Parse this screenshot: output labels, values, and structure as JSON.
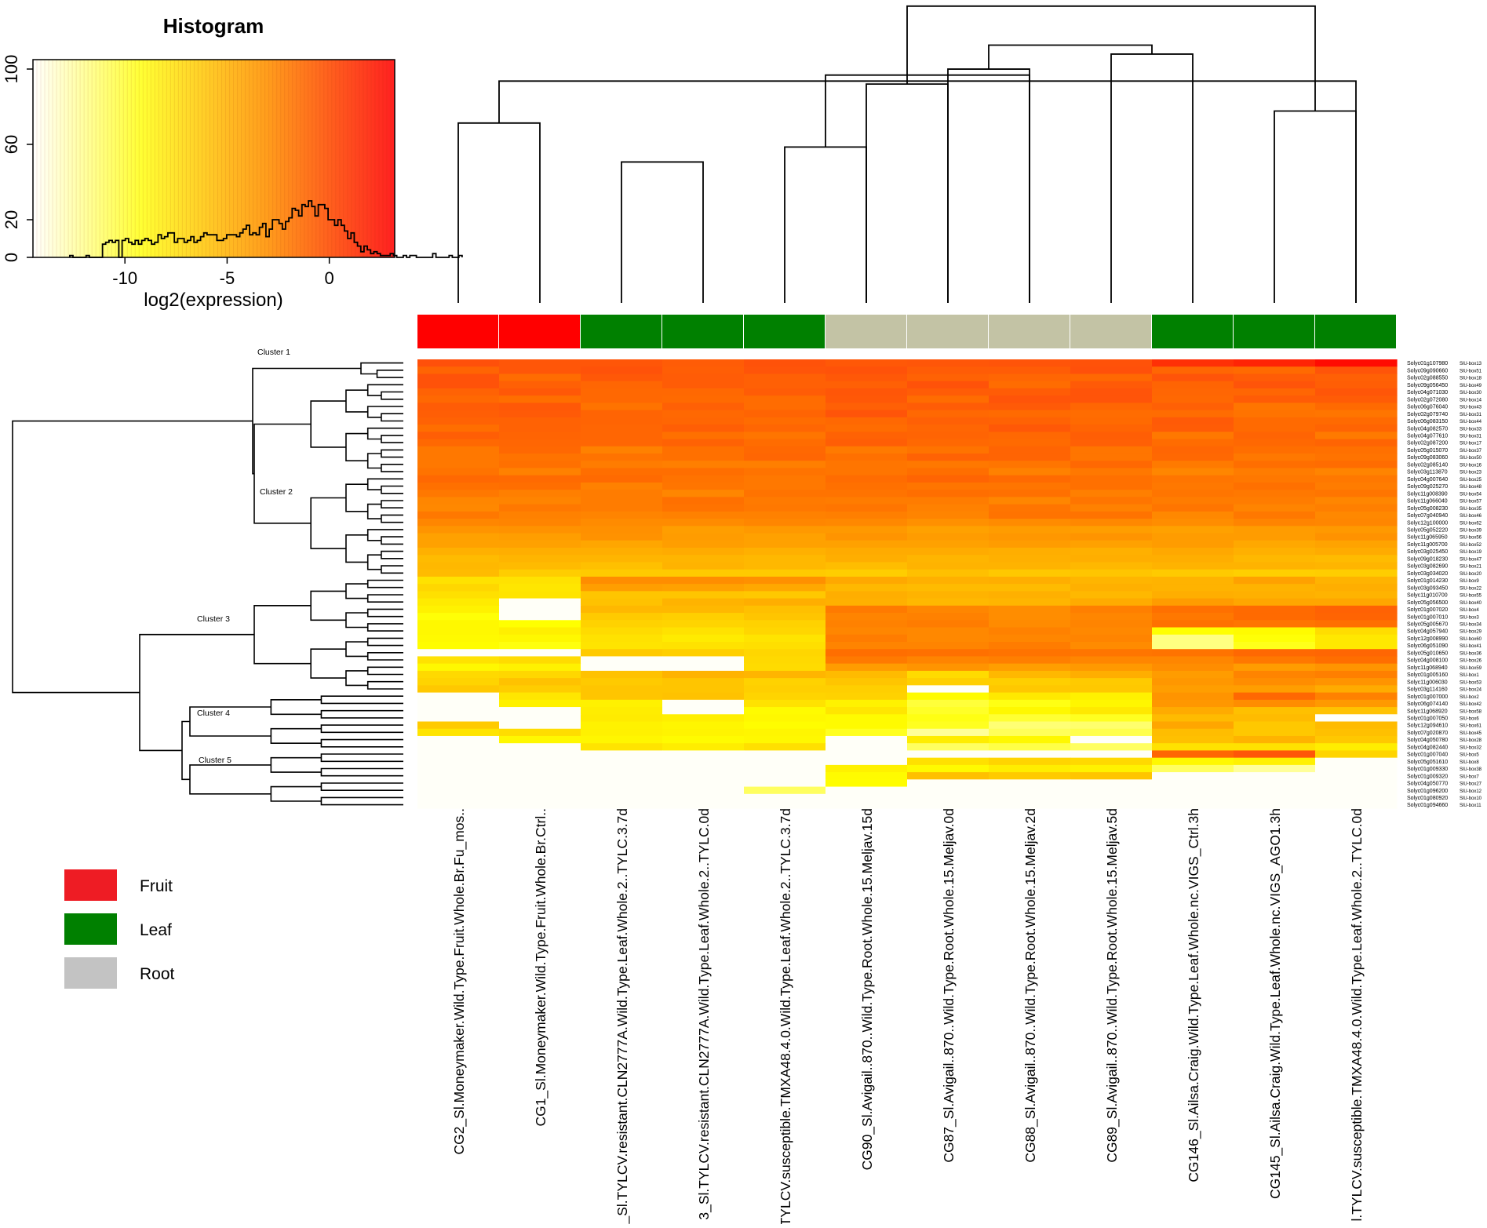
{
  "chart_data": {
    "type": "heatmap",
    "histogram": {
      "title": "Histogram",
      "xlabel": "log2(expression)",
      "x_ticks": [
        "-10",
        "-5",
        "0"
      ],
      "y_ticks": [
        "0",
        "20",
        "60",
        "100"
      ],
      "xlim": [
        -14.5,
        3.2
      ],
      "ylim": [
        0,
        105
      ],
      "bins_start": -12.7,
      "bin_width": 0.16,
      "counts": [
        1,
        0,
        0,
        0,
        0,
        1,
        0,
        0,
        0,
        0,
        7,
        8,
        9,
        8,
        9,
        0,
        9,
        10,
        8,
        7,
        9,
        7,
        9,
        10,
        9,
        7,
        8,
        12,
        10,
        11,
        13,
        13,
        8,
        10,
        10,
        8,
        9,
        11,
        8,
        9,
        11,
        13,
        12,
        12,
        12,
        9,
        9,
        10,
        12,
        12,
        12,
        11,
        13,
        15,
        17,
        12,
        13,
        12,
        16,
        18,
        11,
        15,
        20,
        20,
        18,
        15,
        19,
        21,
        26,
        25,
        22,
        28,
        27,
        30,
        27,
        22,
        28,
        28,
        26,
        20,
        20,
        17,
        20,
        17,
        14,
        10,
        13,
        8,
        6,
        3,
        6,
        4,
        2,
        3,
        2,
        1,
        1,
        1,
        2,
        1,
        0,
        0,
        1,
        0,
        1,
        1,
        0,
        0,
        0,
        0,
        0,
        2,
        0,
        0,
        0,
        0,
        1,
        0,
        0,
        1
      ]
    },
    "samples": [
      "CG2_Sl.Moneymaker.Wild.Type.Fruit.Whole.Br.Fu_mos..",
      "CG1_Sl.Moneymaker.Wild.Type.Fruit.Whole.Br.Ctrl..",
      "_Sl.TYLCV.resistant.CLN2777A.Wild.Type.Leaf.Whole.2..TYLC.3.7d",
      "3_Sl.TYLCV.resistant.CLN2777A.Wild.Type.Leaf.Whole.2..TYLC.0d",
      "TYLCV.susceptible.TMXA48.4.0.Wild.Type.Leaf.Whole.2..TYLC.3.7d",
      "CG90_Sl.Avigail..870..Wild.Type.Root.Whole.15.Meljav.15d",
      "CG87_Sl.Avigail..870..Wild.Type.Root.Whole.15.Meljav.0d",
      "CG88_Sl.Avigail..870..Wild.Type.Root.Whole.15.Meljav.2d",
      "CG89_Sl.Avigail..870..Wild.Type.Root.Whole.15.Meljav.5d",
      "CG146_Sl.Ailsa.Craig.Wild.Type.Leaf.Whole.nc.VIGS_Ctrl.3h",
      "CG145_Sl.Ailsa.Craig.Wild.Type.Leaf.Whole.nc.VIGS_AGO1.3h",
      "l.TYLCV.susceptible.TMXA48.4.0.Wild.Type.Leaf.Whole.2..TYLC.0d"
    ],
    "tissue": [
      "Fruit",
      "Fruit",
      "Leaf",
      "Leaf",
      "Leaf",
      "Root",
      "Root",
      "Root",
      "Root",
      "Leaf",
      "Leaf",
      "Leaf"
    ],
    "tissue_colors": {
      "Fruit": "#ff0000",
      "Leaf": "#008000",
      "Root": "#c3c3a5"
    },
    "col_tree": [
      [
        0,
        1,
        0.6
      ],
      [
        2,
        3,
        0.47
      ],
      [
        4,
        5,
        0.52
      ],
      [
        6,
        7,
        0.78
      ],
      [
        8,
        9,
        0.83
      ],
      [
        5,
        6,
        0.73
      ],
      [
        10,
        11,
        0.64
      ],
      [
        11,
        12,
        0.74
      ],
      [
        7,
        14,
        0.76
      ],
      [
        15,
        16,
        0.86
      ],
      [
        17,
        18,
        0.99
      ]
    ],
    "genes": [
      "Solyc01g107980",
      "Solyc09g090660",
      "Solyc02g088550",
      "Solyc09g056450",
      "Solyc04g071030",
      "Solyc02g072080",
      "Solyc06g076040",
      "Solyc02g079740",
      "Solyc06g083150",
      "Solyc04g082570",
      "Solyc04g077610",
      "Solyc02g087200",
      "Solyc05g015070",
      "Solyc09g083060",
      "Solyc02g085140",
      "Solyc03g113870",
      "Solyc04g007640",
      "Solyc09g025270",
      "Solyc11g008390",
      "Solyc11g066040",
      "Solyc05g008230",
      "Solyc07g040940",
      "Solyc12g100000",
      "Solyc05g052220",
      "Solyc11g065950",
      "Solyc11g005700",
      "Solyc03g025450",
      "Solyc09g018230",
      "Solyc03g082690",
      "Solyc03g034020",
      "Solyc01g014230",
      "Solyc03g093450",
      "Solyc11g010700",
      "Solyc05g056500",
      "Solyc01g007020",
      "Solyc01g007010",
      "Solyc05g005670",
      "Solyc04g057940",
      "Solyc12g008990",
      "Solyc06g051090",
      "Solyc05g010650",
      "Solyc04g008100",
      "Solyc11g068940",
      "Solyc01g005160",
      "Solyc11g006030",
      "Solyc03g114160",
      "Solyc01g007000",
      "Solyc06g074140",
      "Solyc11g068920",
      "Solyc01g007050",
      "Solyc12g094610",
      "Solyc07g020870",
      "Solyc04g050780",
      "Solyc04g082440",
      "Solyc01g007040",
      "Solyc05g051610",
      "Solyc01g009330",
      "Solyc01g009320",
      "Solyc04g050770",
      "Solyc01g096200",
      "Solyc01g080920",
      "Solyc01g094660"
    ],
    "gene_box": [
      "SlU-box13",
      "SlU-box51",
      "SlU-box18",
      "SlU-box49",
      "SlU-box30",
      "SlU-box14",
      "SlU-box43",
      "SlU-box31",
      "SlU-box44",
      "SlU-box33",
      "SlU-box31",
      "SlU-box17",
      "SlU-box37",
      "SlU-box50",
      "SlU-box16",
      "SlU-box23",
      "SlU-box25",
      "SlU-box48",
      "SlU-box54",
      "SlU-box57",
      "SlU-box35",
      "SlU-box46",
      "SlU-box62",
      "SlU-box39",
      "SlU-box56",
      "SlU-box52",
      "SlU-box19",
      "SlU-box47",
      "SlU-box21",
      "SlU-box20",
      "SlU-box9",
      "SlU-box22",
      "SlU-box55",
      "SlU-box40",
      "SlU-box4",
      "SlU-box3",
      "SlU-box34",
      "SlU-box29",
      "SlU-box60",
      "SlU-box41",
      "SlU-box36",
      "SlU-box26",
      "SlU-box59",
      "SlU-box1",
      "SlU-box53",
      "SlU-box24",
      "SlU-box2",
      "SlU-box42",
      "SlU-box58",
      "SlU-box6",
      "SlU-box61",
      "SlU-box45",
      "SlU-box28",
      "SlU-box32",
      "SlU-box5",
      "SlU-box8",
      "SlU-box38",
      "SlU-box7",
      "SlU-box27",
      "SlU-box12",
      "SlU-box10",
      "SlU-box11"
    ],
    "clusters": [
      {
        "label": "Cluster 1",
        "start": 0,
        "end": 3
      },
      {
        "label": "Cluster 2",
        "start": 3,
        "end": 30
      },
      {
        "label": "Cluster 3",
        "start": 30,
        "end": 46
      },
      {
        "label": "Cluster 4",
        "start": 46,
        "end": 54
      },
      {
        "label": "Cluster 5",
        "start": 54,
        "end": 62
      }
    ],
    "value_range": [
      -14,
      3
    ],
    "matrix": [
      [
        -1.0,
        -1.3,
        -1.3,
        -1.6,
        -1.1,
        -1.4,
        -1.3,
        -1.2,
        -1.1,
        -0.2,
        0.1,
        0.7
      ],
      [
        -2.0,
        -1.3,
        -1.1,
        -1.7,
        -1.2,
        -1.1,
        -1.6,
        -1.6,
        -1.0,
        -2.1,
        -2.3,
        -1.2
      ],
      [
        -1.1,
        -2.4,
        -1.4,
        -1.6,
        -1.8,
        -1.4,
        -1.9,
        -2.1,
        -2.2,
        -1.2,
        -1.6,
        -1.8
      ],
      [
        -1.1,
        -1.8,
        -2.1,
        -1.6,
        -1.8,
        -1.8,
        -1.1,
        -2.4,
        -1.5,
        -2.0,
        -1.2,
        -1.7
      ],
      [
        -1.9,
        -1.4,
        -2.2,
        -2.2,
        -1.6,
        -1.3,
        -1.6,
        -1.6,
        -1.2,
        -2.1,
        -2.1,
        -1.3
      ],
      [
        -2.2,
        -2.5,
        -2.2,
        -2.3,
        -2.4,
        -1.4,
        -2.4,
        -1.2,
        -1.2,
        -2.2,
        -1.6,
        -1.6
      ],
      [
        -1.6,
        -1.4,
        -2.7,
        -1.8,
        -2.4,
        -1.8,
        -1.6,
        -1.5,
        -2.1,
        -1.8,
        -2.8,
        -2.3
      ],
      [
        -1.7,
        -1.5,
        -2.0,
        -2.2,
        -2.0,
        -1.2,
        -2.2,
        -2.3,
        -2.4,
        -2.4,
        -2.7,
        -2.8
      ],
      [
        -1.9,
        -1.9,
        -2.0,
        -2.1,
        -2.4,
        -2.2,
        -1.8,
        -1.9,
        -2.3,
        -1.5,
        -2.3,
        -2.3
      ],
      [
        -2.5,
        -1.9,
        -2.1,
        -1.7,
        -2.1,
        -2.4,
        -2.1,
        -1.4,
        -2.0,
        -1.6,
        -2.3,
        -2.0
      ],
      [
        -1.7,
        -2.0,
        -2.1,
        -2.6,
        -2.8,
        -1.9,
        -2.0,
        -2.2,
        -1.7,
        -2.9,
        -2.0,
        -3.0
      ],
      [
        -2.2,
        -2.1,
        -2.1,
        -1.9,
        -2.4,
        -1.7,
        -2.2,
        -2.3,
        -1.8,
        -2.4,
        -2.2,
        -2.0
      ],
      [
        -2.9,
        -2.2,
        -3.3,
        -2.6,
        -2.2,
        -3.0,
        -2.7,
        -2.0,
        -2.8,
        -2.1,
        -2.5,
        -2.6
      ],
      [
        -2.9,
        -2.7,
        -2.7,
        -2.6,
        -2.1,
        -2.6,
        -1.9,
        -2.0,
        -2.8,
        -2.2,
        -2.9,
        -2.7
      ],
      [
        -2.9,
        -2.6,
        -3.1,
        -3.2,
        -3.2,
        -2.8,
        -2.9,
        -2.8,
        -2.2,
        -3.0,
        -2.5,
        -2.4
      ],
      [
        -2.7,
        -3.3,
        -2.5,
        -2.5,
        -2.7,
        -2.8,
        -2.5,
        -3.3,
        -2.9,
        -3.5,
        -3.1,
        -3.4
      ],
      [
        -2.2,
        -2.3,
        -2.3,
        -2.7,
        -2.9,
        -2.4,
        -2.0,
        -2.3,
        -2.6,
        -2.8,
        -2.9,
        -2.9
      ],
      [
        -2.6,
        -2.5,
        -3.3,
        -2.8,
        -2.9,
        -2.6,
        -2.8,
        -2.8,
        -2.6,
        -2.9,
        -2.6,
        -3.1
      ],
      [
        -2.9,
        -3.2,
        -3.1,
        -3.5,
        -2.7,
        -2.7,
        -2.5,
        -2.6,
        -3.2,
        -2.8,
        -2.9,
        -2.8
      ],
      [
        -3.5,
        -3.4,
        -3.1,
        -2.6,
        -3.0,
        -3.1,
        -3.1,
        -3.5,
        -2.8,
        -3.1,
        -3.1,
        -3.5
      ],
      [
        -3.6,
        -2.9,
        -3.1,
        -2.7,
        -2.9,
        -2.8,
        -3.3,
        -2.8,
        -3.3,
        -2.8,
        -3.4,
        -3.2
      ],
      [
        -2.9,
        -3.3,
        -3.4,
        -3.3,
        -3.3,
        -3.2,
        -3.4,
        -2.7,
        -2.7,
        -3.6,
        -2.9,
        -3.6
      ],
      [
        -3.5,
        -3.4,
        -3.7,
        -3.7,
        -3.5,
        -3.6,
        -3.9,
        -3.7,
        -3.6,
        -3.8,
        -3.4,
        -3.5
      ],
      [
        -4.1,
        -4.0,
        -3.9,
        -4.5,
        -4.3,
        -4.3,
        -4.6,
        -4.4,
        -4.5,
        -4.6,
        -4.4,
        -4.3
      ],
      [
        -4.6,
        -4.5,
        -4.0,
        -4.4,
        -4.6,
        -4.1,
        -4.4,
        -4.2,
        -4.1,
        -4.4,
        -4.4,
        -4.0
      ],
      [
        -4.6,
        -4.6,
        -4.8,
        -4.5,
        -4.6,
        -4.6,
        -4.6,
        -4.4,
        -4.6,
        -4.4,
        -4.9,
        -4.7
      ],
      [
        -5.2,
        -5.1,
        -5.1,
        -5.0,
        -5.2,
        -5.0,
        -5.0,
        -5.1,
        -5.2,
        -4.9,
        -5.2,
        -5.0
      ],
      [
        -5.6,
        -5.4,
        -5.4,
        -5.4,
        -5.5,
        -5.1,
        -5.4,
        -5.2,
        -5.1,
        -5.1,
        -5.5,
        -5.6
      ],
      [
        -5.5,
        -5.6,
        -5.8,
        -5.3,
        -5.5,
        -5.7,
        -5.3,
        -5.3,
        -5.5,
        -5.3,
        -5.3,
        -5.4
      ],
      [
        -5.6,
        -6.3,
        -6.2,
        -6.2,
        -6.2,
        -6.3,
        -5.8,
        -6.1,
        -6.0,
        -6.2,
        -6.4,
        -6.3
      ],
      [
        -7.4,
        -7.4,
        -3.8,
        -3.8,
        -3.9,
        -4.9,
        -5.2,
        -5.1,
        -5.4,
        -5.3,
        -4.6,
        -5.3
      ],
      [
        -6.8,
        -7.6,
        -4.5,
        -4.6,
        -4.9,
        -5.5,
        -5.6,
        -5.6,
        -5.2,
        -5.3,
        -5.3,
        -5.1
      ],
      [
        -7.3,
        -7.5,
        -6.0,
        -6.0,
        -6.1,
        -5.1,
        -5.3,
        -5.2,
        -5.5,
        -5.1,
        -5.2,
        -5.3
      ],
      [
        -7.9,
        -14.0,
        -5.9,
        -5.3,
        -5.1,
        -5.2,
        -5.5,
        -5.4,
        -5.0,
        -4.4,
        -4.8,
        -4.8
      ],
      [
        -8.3,
        -14.0,
        -5.5,
        -5.5,
        -5.8,
        -3.0,
        -3.5,
        -3.8,
        -3.2,
        -2.6,
        -2.3,
        -1.9
      ],
      [
        -9.1,
        -14.0,
        -6.2,
        -6.4,
        -6.0,
        -3.4,
        -3.3,
        -3.8,
        -3.5,
        -2.9,
        -2.3,
        -2.0
      ],
      [
        -8.6,
        -9.0,
        -6.5,
        -6.6,
        -6.5,
        -3.3,
        -3.1,
        -3.7,
        -3.4,
        -2.6,
        -2.8,
        -2.6
      ],
      [
        -8.6,
        -8.1,
        -7.0,
        -7.4,
        -6.7,
        -3.5,
        -3.6,
        -3.3,
        -3.6,
        -9.0,
        -8.8,
        -7.1
      ],
      [
        -8.7,
        -8.6,
        -7.4,
        -7.9,
        -7.5,
        -3.1,
        -3.6,
        -3.5,
        -3.4,
        -11.0,
        -9.1,
        -7.7
      ],
      [
        -8.9,
        -9.2,
        -7.5,
        -7.4,
        -7.2,
        -3.4,
        -3.4,
        -3.1,
        -3.7,
        -11.0,
        -9.4,
        -7.7
      ],
      [
        -14.0,
        -14.0,
        -6.2,
        -6.4,
        -6.7,
        -2.5,
        -2.6,
        -2.7,
        -2.8,
        -2.7,
        -2.2,
        -2.1
      ],
      [
        -7.4,
        -7.0,
        -14.0,
        -14.0,
        -6.9,
        -3.0,
        -3.4,
        -3.2,
        -3.5,
        -3.5,
        -2.9,
        -2.5
      ],
      [
        -8.6,
        -8.2,
        -14.0,
        -14.0,
        -7.0,
        -4.4,
        -4.1,
        -4.5,
        -4.3,
        -3.8,
        -4.4,
        -4.1
      ],
      [
        -6.9,
        -6.8,
        -5.9,
        -5.3,
        -5.4,
        -5.6,
        -7.0,
        -5.5,
        -5.1,
        -4.4,
        -3.4,
        -3.2
      ],
      [
        -6.6,
        -5.9,
        -6.2,
        -6.0,
        -6.5,
        -6.0,
        -6.4,
        -6.4,
        -6.2,
        -4.2,
        -3.8,
        -4.1
      ],
      [
        -6.1,
        -6.3,
        -6.0,
        -6.0,
        -6.4,
        -6.4,
        -14.0,
        -6.1,
        -6.1,
        -4.5,
        -4.5,
        -5.0
      ],
      [
        -14.0,
        -7.6,
        -6.0,
        -5.9,
        -6.6,
        -6.5,
        -8.8,
        -7.8,
        -8.2,
        -4.1,
        -2.2,
        -3.3
      ],
      [
        -14.0,
        -8.2,
        -8.2,
        -14.0,
        -7.4,
        -8.3,
        -9.9,
        -9.3,
        -8.5,
        -4.2,
        -3.8,
        -4.3
      ],
      [
        -14.0,
        -14.0,
        -8.0,
        -14.0,
        -8.8,
        -7.6,
        -9.6,
        -8.6,
        -7.8,
        -5.0,
        -5.8,
        -5.9
      ],
      [
        -14.0,
        -14.0,
        -7.9,
        -8.1,
        -8.6,
        -8.8,
        -9.3,
        -9.8,
        -9.5,
        -5.6,
        -5.6,
        -14.0
      ],
      [
        -6.2,
        -14.0,
        -8.3,
        -8.5,
        -8.9,
        -8.8,
        -9.5,
        -10.8,
        -10.7,
        -4.8,
        -6.1,
        -5.6
      ],
      [
        -7.5,
        -7.1,
        -8.2,
        -8.4,
        -8.5,
        -9.5,
        -11.4,
        -10.4,
        -10.2,
        -5.7,
        -6.1,
        -5.8
      ],
      [
        -14.0,
        -8.6,
        -8.5,
        -8.8,
        -8.6,
        -14.0,
        -8.0,
        -8.6,
        -14.0,
        -5.8,
        -5.3,
        -6.1
      ],
      [
        -14.0,
        -14.0,
        -7.5,
        -8.0,
        -7.3,
        -14.0,
        -10.5,
        -10.1,
        -10.5,
        -7.4,
        -7.4,
        -8.0
      ],
      [
        -14.0,
        -14.0,
        -14.0,
        -14.0,
        -14.0,
        -14.0,
        -14.0,
        -14.0,
        -14.0,
        -2.1,
        -1.3,
        -6.6
      ],
      [
        -14.0,
        -14.0,
        -14.0,
        -14.0,
        -14.0,
        -14.0,
        -7.3,
        -6.6,
        -6.9,
        -8.6,
        -8.2,
        -14.0
      ],
      [
        -14.0,
        -14.0,
        -14.0,
        -14.0,
        -14.0,
        -8.2,
        -8.7,
        -8.0,
        -8.3,
        -10.5,
        -11.4,
        -14.0
      ],
      [
        -14.0,
        -14.0,
        -14.0,
        -14.0,
        -14.0,
        -8.8,
        -5.8,
        -6.2,
        -6.0,
        -14.0,
        -14.0,
        -14.0
      ],
      [
        -14.0,
        -14.0,
        -14.0,
        -14.0,
        -14.0,
        -8.9,
        -14.0,
        -14.0,
        -14.0,
        -14.0,
        -14.0,
        -14.0
      ],
      [
        -14.0,
        -14.0,
        -14.0,
        -14.0,
        -10.5,
        -14.0,
        -14.0,
        -14.0,
        -14.0,
        -14.0,
        -14.0,
        -14.0
      ],
      [
        -14.0,
        -14.0,
        -14.0,
        -14.0,
        -14.0,
        -14.0,
        -14.0,
        -14.0,
        -14.0,
        -14.0,
        -14.0,
        -14.0
      ],
      [
        -14.0,
        -14.0,
        -14.0,
        -14.0,
        -14.0,
        -14.0,
        -14.0,
        -14.0,
        -14.0,
        -14.0,
        -14.0,
        -14.0
      ]
    ],
    "legend": [
      {
        "label": "Fruit",
        "color": "#ee1c24"
      },
      {
        "label": "Leaf",
        "color": "#008000"
      },
      {
        "label": "Root",
        "color": "#c3c3c3"
      }
    ]
  }
}
